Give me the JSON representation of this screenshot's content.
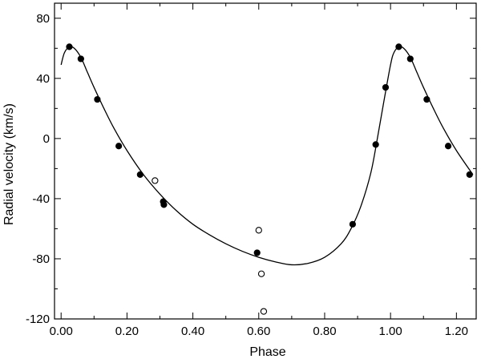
{
  "chart_data": {
    "type": "scatter",
    "title": "",
    "xlabel": "Phase",
    "ylabel": "Radial velocity (km/s)",
    "xlim": [
      -0.02,
      1.26
    ],
    "ylim": [
      -120,
      90
    ],
    "xticks": [
      0.0,
      0.2,
      0.4,
      0.6,
      0.8,
      1.0,
      1.2
    ],
    "xtick_labels": [
      "0.00",
      "0.20",
      "0.40",
      "0.60",
      "0.80",
      "1.00",
      "1.20"
    ],
    "yticks": [
      80,
      40,
      0,
      -40,
      -80,
      -120
    ],
    "ytick_labels": [
      "80",
      "40",
      "0",
      "-40",
      "-80",
      "-120"
    ],
    "grid": false,
    "legend": "none",
    "colors": {
      "ink": "#000000",
      "background": "#ffffff"
    },
    "series": [
      {
        "marker": "filled-circle",
        "points": [
          [
            0.025,
            61
          ],
          [
            0.06,
            53
          ],
          [
            0.11,
            26
          ],
          [
            0.175,
            -5
          ],
          [
            0.24,
            -24
          ],
          [
            0.31,
            -42
          ],
          [
            0.312,
            -44
          ],
          [
            0.595,
            -76
          ],
          [
            0.885,
            -57
          ],
          [
            0.955,
            -4
          ],
          [
            0.985,
            34
          ],
          [
            1.025,
            61
          ],
          [
            1.06,
            53
          ],
          [
            1.11,
            26
          ],
          [
            1.175,
            -5
          ],
          [
            1.24,
            -24
          ]
        ]
      },
      {
        "marker": "open-circle",
        "points": [
          [
            0.285,
            -28
          ],
          [
            0.6,
            -61
          ],
          [
            0.608,
            -90
          ],
          [
            0.615,
            -115
          ]
        ]
      },
      {
        "marker": "line",
        "points": [
          [
            0.0,
            49
          ],
          [
            0.01,
            57
          ],
          [
            0.025,
            61
          ],
          [
            0.04,
            60
          ],
          [
            0.06,
            54
          ],
          [
            0.08,
            44
          ],
          [
            0.1,
            34
          ],
          [
            0.13,
            20
          ],
          [
            0.16,
            7
          ],
          [
            0.2,
            -8
          ],
          [
            0.25,
            -24
          ],
          [
            0.3,
            -37
          ],
          [
            0.35,
            -48
          ],
          [
            0.4,
            -57
          ],
          [
            0.45,
            -64
          ],
          [
            0.5,
            -70
          ],
          [
            0.55,
            -75
          ],
          [
            0.6,
            -79
          ],
          [
            0.65,
            -82
          ],
          [
            0.7,
            -84
          ],
          [
            0.75,
            -83
          ],
          [
            0.8,
            -79
          ],
          [
            0.85,
            -70
          ],
          [
            0.88,
            -60
          ],
          [
            0.91,
            -45
          ],
          [
            0.94,
            -23
          ],
          [
            0.96,
            0
          ],
          [
            0.98,
            25
          ],
          [
            1.0,
            49
          ],
          [
            1.01,
            57
          ],
          [
            1.025,
            61
          ],
          [
            1.04,
            60
          ],
          [
            1.06,
            54
          ],
          [
            1.08,
            44
          ],
          [
            1.1,
            34
          ],
          [
            1.13,
            20
          ],
          [
            1.16,
            7
          ],
          [
            1.2,
            -8
          ],
          [
            1.25,
            -24
          ]
        ]
      }
    ]
  }
}
